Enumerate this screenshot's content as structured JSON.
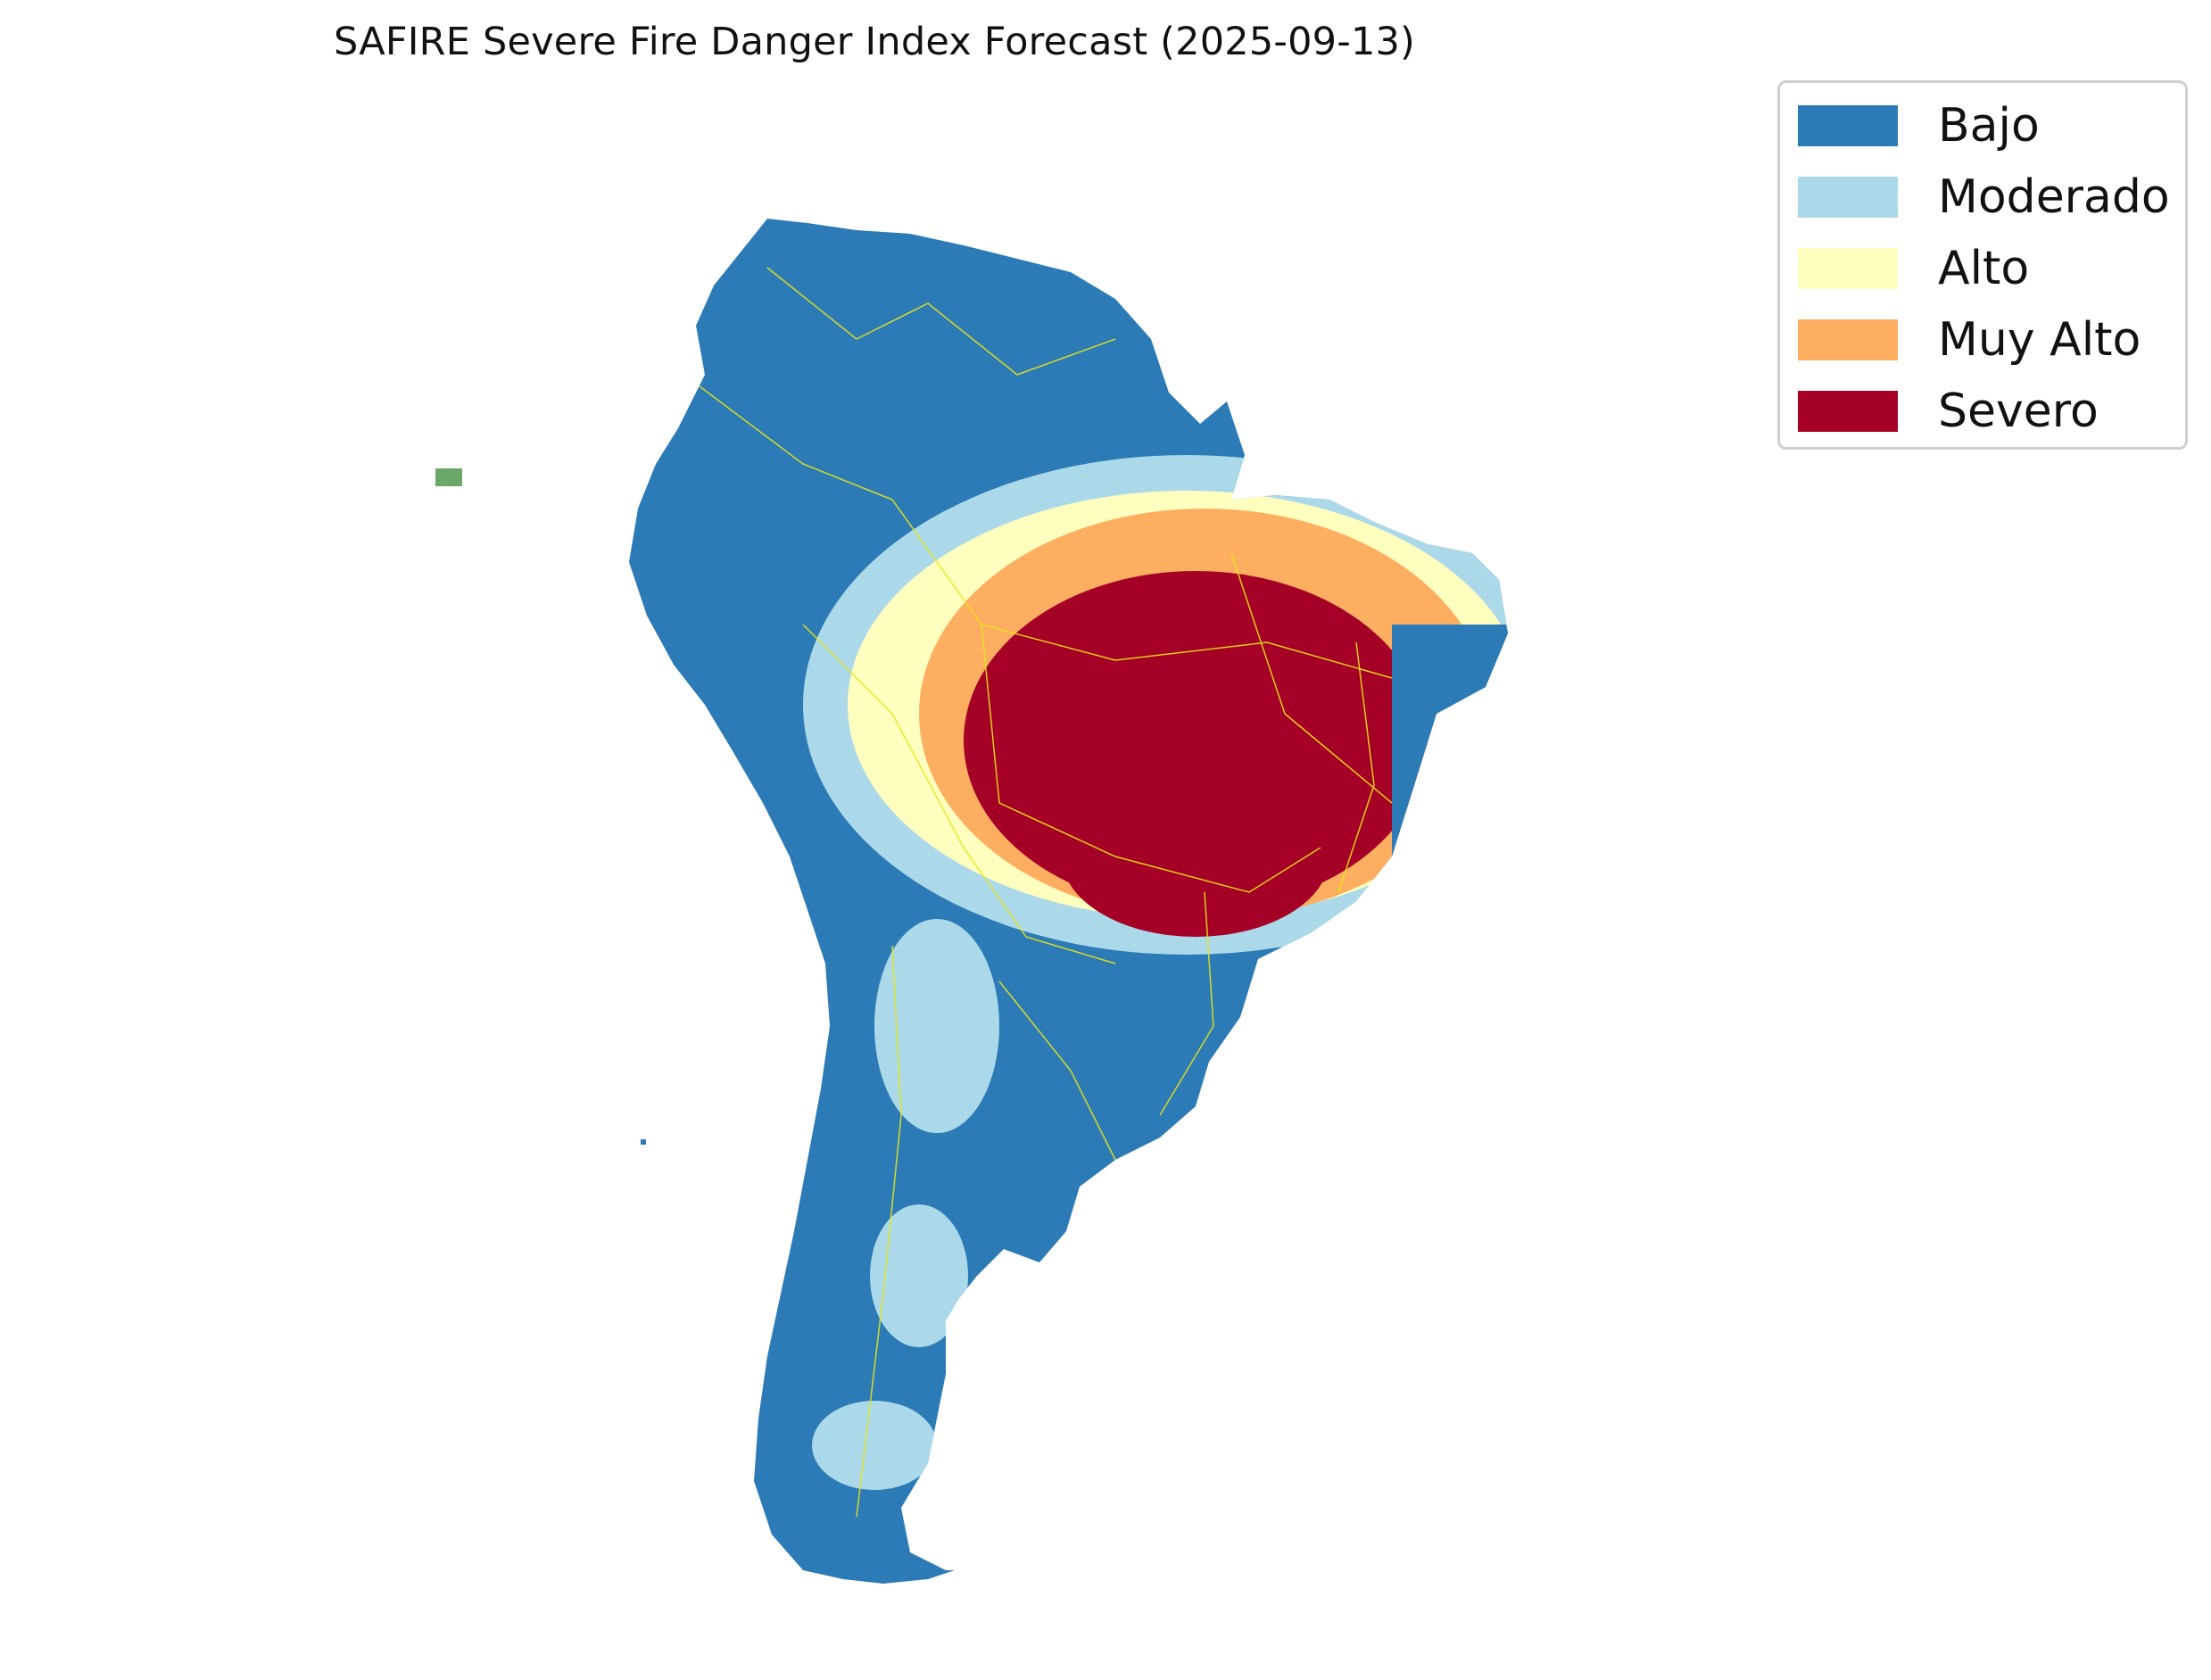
{
  "title": "SAFIRE Severe Fire Danger Index Forecast (2025-09-13)",
  "legend": {
    "items": [
      {
        "label": "Bajo",
        "color": "#2c7bb6"
      },
      {
        "label": "Moderado",
        "color": "#abd9e9"
      },
      {
        "label": "Alto",
        "color": "#ffffbf"
      },
      {
        "label": "Muy Alto",
        "color": "#fdae61"
      },
      {
        "label": "Severo",
        "color": "#a50026"
      }
    ]
  },
  "border_color": "#e6e61a"
}
